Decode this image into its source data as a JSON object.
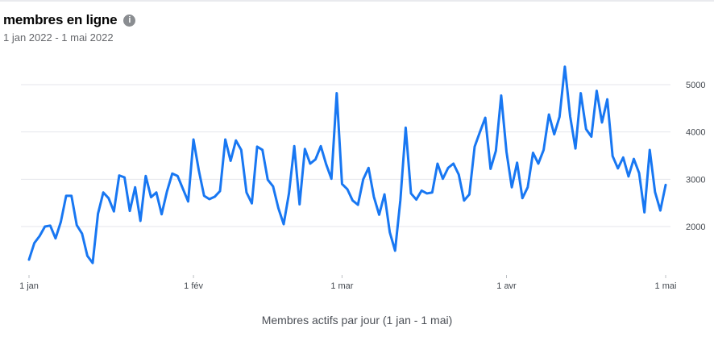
{
  "header": {
    "title": "membres en ligne",
    "info_icon": "info-icon",
    "date_range": "1 jan 2022 - 1 mai 2022"
  },
  "footer": {
    "caption": "Membres actifs par jour (1 jan - 1 mai)"
  },
  "colors": {
    "line": "#1877f2",
    "grid": "#e4e6eb",
    "tick_text": "#444950"
  },
  "chart_data": {
    "type": "line",
    "title": "",
    "xlabel": "Membres actifs par jour (1 jan - 1 mai)",
    "ylabel": "",
    "y_ticks": [
      2000,
      3000,
      4000,
      5000
    ],
    "y_axis_position": "right",
    "ylim": [
      1000,
      5600
    ],
    "grid": true,
    "x_ticks": [
      {
        "label": "1 jan",
        "x": "2022-01-01"
      },
      {
        "label": "1 fév",
        "x": "2022-02-01"
      },
      {
        "label": "1 mar",
        "x": "2022-03-01"
      },
      {
        "label": "1 avr",
        "x": "2022-04-01"
      },
      {
        "label": "1 mai",
        "x": "2022-05-01"
      }
    ],
    "series": [
      {
        "x_start": "2022-01-01",
        "x_end": "2022-05-01",
        "interval": "1 day",
        "values": [
          1300,
          1650,
          1800,
          2000,
          2020,
          1750,
          2100,
          2650,
          2650,
          2030,
          1850,
          1380,
          1230,
          2270,
          2720,
          2600,
          2320,
          3080,
          3040,
          2330,
          2830,
          2120,
          3070,
          2620,
          2720,
          2260,
          2740,
          3120,
          3070,
          2800,
          2530,
          3840,
          3190,
          2650,
          2580,
          2630,
          2750,
          3840,
          3390,
          3820,
          3620,
          2720,
          2490,
          3690,
          3620,
          2990,
          2850,
          2390,
          2050,
          2700,
          3700,
          2470,
          3640,
          3330,
          3420,
          3700,
          3320,
          3010,
          4820,
          2900,
          2790,
          2550,
          2460,
          3000,
          3240,
          2630,
          2250,
          2680,
          1880,
          1490,
          2560,
          4090,
          2700,
          2570,
          2760,
          2700,
          2720,
          3330,
          3010,
          3240,
          3330,
          3100,
          2550,
          2680,
          3690,
          4000,
          4300,
          3220,
          3600,
          4770,
          3580,
          2830,
          3350,
          2600,
          2830,
          3560,
          3330,
          3620,
          4370,
          3950,
          4320,
          5380,
          4330,
          3650,
          4820,
          4060,
          3900,
          4870,
          4200,
          4690,
          3490,
          3230,
          3460,
          3060,
          3430,
          3130,
          2300,
          3620,
          2730,
          2340,
          2880
        ]
      }
    ]
  }
}
